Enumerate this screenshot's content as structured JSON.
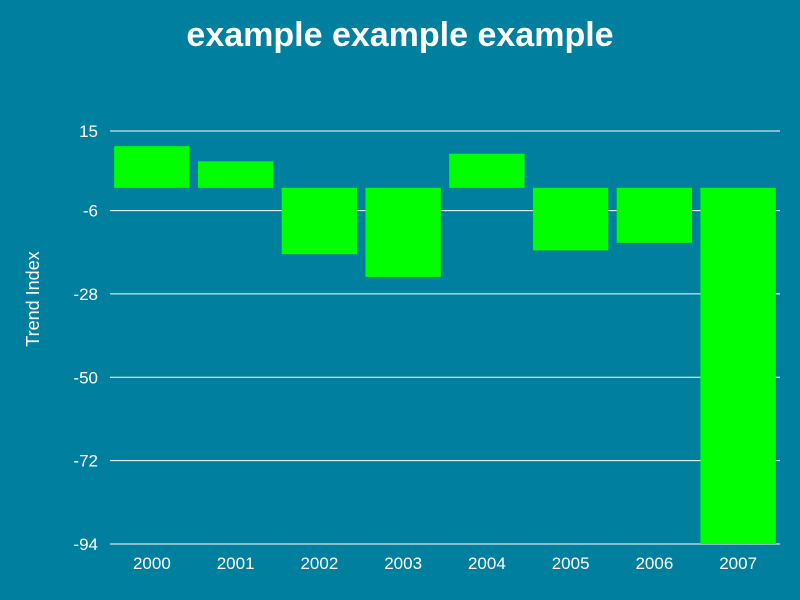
{
  "chart_data": {
    "type": "bar",
    "title": "example example example",
    "xlabel": "",
    "ylabel": "Trend Index",
    "categories": [
      "2000",
      "2001",
      "2002",
      "2003",
      "2004",
      "2005",
      "2006",
      "2007"
    ],
    "values": [
      11,
      7,
      -17.5,
      -23.5,
      9,
      -16.5,
      -14.5,
      -94
    ],
    "y_ticks": [
      15,
      -6,
      -28,
      -50,
      -72,
      -94
    ],
    "ylim": [
      -94,
      15
    ],
    "baseline": 0,
    "grid": true,
    "legend": "none",
    "colors": {
      "background": "#007F9E",
      "bar": "#00FF00",
      "grid": "#FFFFFF",
      "text": "#FFFFFF"
    }
  }
}
